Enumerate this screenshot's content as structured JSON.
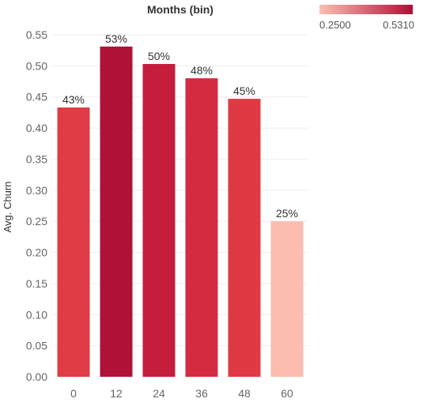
{
  "chart_data": {
    "type": "bar",
    "title": "Months (bin)",
    "xlabel": "",
    "ylabel": "Avg. Churn",
    "categories": [
      "0",
      "12",
      "24",
      "36",
      "48",
      "60"
    ],
    "values": [
      0.433,
      0.531,
      0.503,
      0.48,
      0.447,
      0.25
    ],
    "data_labels": [
      "43%",
      "53%",
      "50%",
      "48%",
      "45%",
      "25%"
    ],
    "ylim": [
      0,
      0.55
    ],
    "yticks": [
      0.0,
      0.05,
      0.1,
      0.15,
      0.2,
      0.25,
      0.3,
      0.35,
      0.4,
      0.45,
      0.5,
      0.55
    ],
    "ytick_labels": [
      "0.00",
      "0.05",
      "0.10",
      "0.15",
      "0.20",
      "0.25",
      "0.30",
      "0.35",
      "0.40",
      "0.45",
      "0.50",
      "0.55"
    ],
    "grid": true,
    "legend": {
      "type": "color-gradient",
      "placement": "top-right",
      "min_label": "0.2500",
      "max_label": "0.5310",
      "min_value": 0.25,
      "max_value": 0.531,
      "color_low": "#fbbfb2",
      "color_high": "#ad1035"
    },
    "bar_colors": [
      "#e03c45",
      "#ae1236",
      "#c41e3c",
      "#d42b40",
      "#df3a44",
      "#fcbcae"
    ]
  }
}
